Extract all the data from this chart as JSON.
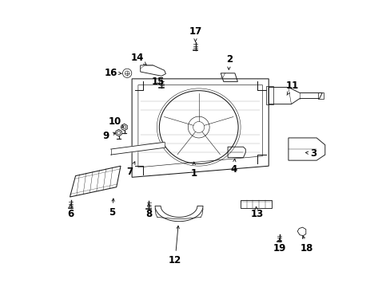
{
  "bg_color": "#ffffff",
  "line_color": "#1a1a1a",
  "text_color": "#000000",
  "figsize": [
    4.89,
    3.6
  ],
  "dpi": 100,
  "labels_info": {
    "1": {
      "lpos": [
        0.495,
        0.395
      ],
      "tpos": [
        0.495,
        0.445
      ]
    },
    "2": {
      "lpos": [
        0.62,
        0.8
      ],
      "tpos": [
        0.618,
        0.752
      ]
    },
    "3": {
      "lpos": [
        0.92,
        0.465
      ],
      "tpos": [
        0.888,
        0.468
      ]
    },
    "4": {
      "lpos": [
        0.635,
        0.408
      ],
      "tpos": [
        0.64,
        0.448
      ]
    },
    "5": {
      "lpos": [
        0.205,
        0.255
      ],
      "tpos": [
        0.21,
        0.315
      ]
    },
    "6": {
      "lpos": [
        0.058,
        0.25
      ],
      "tpos": [
        0.058,
        0.295
      ]
    },
    "7": {
      "lpos": [
        0.268,
        0.398
      ],
      "tpos": [
        0.29,
        0.445
      ]
    },
    "8": {
      "lpos": [
        0.335,
        0.25
      ],
      "tpos": [
        0.335,
        0.29
      ]
    },
    "9": {
      "lpos": [
        0.183,
        0.528
      ],
      "tpos": [
        0.228,
        0.54
      ]
    },
    "10": {
      "lpos": [
        0.215,
        0.578
      ],
      "tpos": [
        0.248,
        0.556
      ]
    },
    "11": {
      "lpos": [
        0.845,
        0.705
      ],
      "tpos": [
        0.82,
        0.665
      ]
    },
    "12": {
      "lpos": [
        0.428,
        0.085
      ],
      "tpos": [
        0.44,
        0.218
      ]
    },
    "13": {
      "lpos": [
        0.718,
        0.248
      ],
      "tpos": [
        0.715,
        0.278
      ]
    },
    "14": {
      "lpos": [
        0.295,
        0.805
      ],
      "tpos": [
        0.328,
        0.778
      ]
    },
    "15": {
      "lpos": [
        0.368,
        0.72
      ],
      "tpos": [
        0.378,
        0.7
      ]
    },
    "16": {
      "lpos": [
        0.2,
        0.752
      ],
      "tpos": [
        0.248,
        0.748
      ]
    },
    "17": {
      "lpos": [
        0.5,
        0.898
      ],
      "tpos": [
        0.5,
        0.86
      ]
    },
    "18": {
      "lpos": [
        0.895,
        0.128
      ],
      "tpos": [
        0.878,
        0.182
      ]
    },
    "19": {
      "lpos": [
        0.8,
        0.128
      ],
      "tpos": [
        0.798,
        0.172
      ]
    }
  }
}
